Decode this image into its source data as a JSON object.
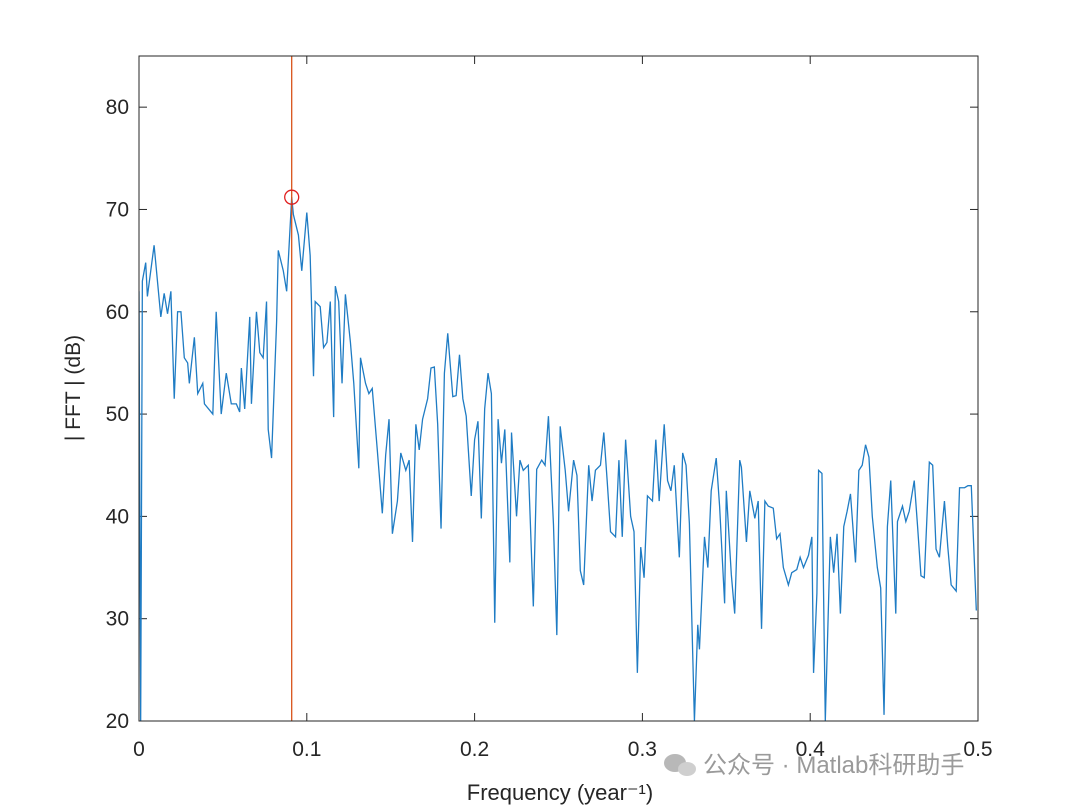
{
  "chart_data": {
    "type": "line",
    "xlabel": "Frequency (year⁻¹)",
    "ylabel": "| FFT | (dB)",
    "watermark": "公众号 · Matlab科研助手",
    "xlim": [
      0,
      0.5
    ],
    "ylim": [
      20,
      85
    ],
    "xticks": [
      0,
      0.1,
      0.2,
      0.3,
      0.4,
      0.5
    ],
    "yticks": [
      20,
      30,
      40,
      50,
      60,
      70,
      80
    ],
    "vline": {
      "x": 0.091,
      "color": "#d95319"
    },
    "marker": {
      "x": 0.091,
      "y": 71.2,
      "color": "#e02020"
    },
    "series": [
      {
        "color": "#1f7cc4",
        "x": [
          0,
          0.001,
          0.002,
          0.004,
          0.005,
          0.009,
          0.013,
          0.015,
          0.017,
          0.019,
          0.021,
          0.023,
          0.025,
          0.027,
          0.029,
          0.03,
          0.033,
          0.035,
          0.038,
          0.039,
          0.044,
          0.046,
          0.049,
          0.052,
          0.055,
          0.058,
          0.06,
          0.061,
          0.063,
          0.066,
          0.067,
          0.07,
          0.072,
          0.074,
          0.076,
          0.077,
          0.079,
          0.082,
          0.083,
          0.086,
          0.088,
          0.091,
          0.092,
          0.095,
          0.097,
          0.1,
          0.102,
          0.104,
          0.105,
          0.108,
          0.11,
          0.112,
          0.114,
          0.116,
          0.117,
          0.119,
          0.121,
          0.123,
          0.126,
          0.128,
          0.131,
          0.132,
          0.135,
          0.137,
          0.139,
          0.142,
          0.145,
          0.147,
          0.149,
          0.151,
          0.154,
          0.156,
          0.159,
          0.161,
          0.163,
          0.165,
          0.167,
          0.169,
          0.172,
          0.174,
          0.176,
          0.178,
          0.18,
          0.182,
          0.184,
          0.187,
          0.189,
          0.191,
          0.193,
          0.195,
          0.198,
          0.2,
          0.202,
          0.204,
          0.206,
          0.208,
          0.21,
          0.212,
          0.214,
          0.216,
          0.218,
          0.221,
          0.222,
          0.225,
          0.227,
          0.229,
          0.232,
          0.235,
          0.237,
          0.24,
          0.242,
          0.244,
          0.247,
          0.249,
          0.251,
          0.254,
          0.256,
          0.259,
          0.261,
          0.263,
          0.265,
          0.268,
          0.27,
          0.272,
          0.275,
          0.277,
          0.279,
          0.281,
          0.284,
          0.286,
          0.288,
          0.29,
          0.293,
          0.295,
          0.297,
          0.299,
          0.301,
          0.303,
          0.306,
          0.308,
          0.31,
          0.313,
          0.315,
          0.317,
          0.319,
          0.322,
          0.324,
          0.326,
          0.328,
          0.331,
          0.333,
          0.334,
          0.337,
          0.339,
          0.341,
          0.344,
          0.346,
          0.349,
          0.35,
          0.353,
          0.355,
          0.358,
          0.359,
          0.362,
          0.364,
          0.367,
          0.369,
          0.371,
          0.373,
          0.375,
          0.378,
          0.38,
          0.382,
          0.384,
          0.387,
          0.389,
          0.392,
          0.394,
          0.396,
          0.399,
          0.401,
          0.402,
          0.404,
          0.405,
          0.407,
          0.409,
          0.412,
          0.414,
          0.416,
          0.418,
          0.42,
          0.422,
          0.424,
          0.427,
          0.429,
          0.431,
          0.433,
          0.435,
          0.437,
          0.44,
          0.442,
          0.444,
          0.446,
          0.448,
          0.451,
          0.452,
          0.455,
          0.457,
          0.459,
          0.462,
          0.464,
          0.466,
          0.468,
          0.471,
          0.473,
          0.475,
          0.477,
          0.48,
          0.482,
          0.484,
          0.487,
          0.489,
          0.492,
          0.494,
          0.496,
          0.499
        ],
        "values": [
          62,
          20,
          63,
          64.8,
          61.5,
          66.5,
          59.5,
          61.8,
          59.8,
          62,
          51.5,
          60,
          60,
          55.5,
          55,
          53,
          57.5,
          52,
          53,
          51,
          50,
          60,
          50,
          54,
          51,
          51,
          50.2,
          54.5,
          50.5,
          59.5,
          51,
          60,
          56,
          55.5,
          61,
          48.5,
          45.7,
          59,
          66,
          64,
          62,
          71.2,
          69.5,
          67.5,
          64,
          69.7,
          65.5,
          53.7,
          61,
          60.5,
          56.5,
          57,
          61,
          49.7,
          62.5,
          61,
          53,
          61.7,
          57,
          53,
          44.7,
          55.5,
          53,
          52,
          52.5,
          46.5,
          40.3,
          46,
          49.5,
          38.3,
          41.5,
          46.2,
          44.5,
          45.5,
          37.5,
          49,
          46.5,
          49.5,
          51.5,
          54.5,
          54.6,
          49,
          38.8,
          54,
          57.9,
          51.7,
          51.8,
          55.8,
          51.5,
          49.8,
          42,
          47.5,
          49.3,
          39.8,
          50.5,
          54,
          52,
          29.6,
          49.5,
          45.2,
          48.5,
          35.5,
          48.2,
          40,
          45.5,
          44.5,
          45,
          31.2,
          44.6,
          45.5,
          45,
          49.8,
          39.2,
          28.4,
          48.8,
          44.5,
          40.5,
          45.5,
          44,
          34.7,
          33.3,
          45,
          41.5,
          44.5,
          45,
          48.2,
          43.5,
          38.5,
          38,
          45.5,
          38,
          47.5,
          40,
          38.5,
          24.7,
          37,
          34,
          42,
          41.5,
          47.5,
          41.5,
          49,
          43.5,
          42.5,
          45,
          36,
          46.2,
          45,
          39.3,
          20,
          29.4,
          27,
          38,
          35,
          42.5,
          45.7,
          41,
          31.5,
          42.5,
          34.3,
          30.5,
          45.5,
          44.8,
          37.5,
          42.5,
          39.8,
          41.5,
          29,
          41.5,
          41,
          40.8,
          37.8,
          38.3,
          35,
          33.3,
          34.5,
          34.8,
          36,
          35,
          36.2,
          38,
          24.7,
          32.5,
          44.5,
          44.2,
          20,
          38,
          34.5,
          38.3,
          30.5,
          39,
          40.5,
          42.2,
          35.5,
          44.5,
          45,
          47,
          45.8,
          40,
          35,
          33,
          20.6,
          39,
          43.5,
          30.5,
          39.5,
          41,
          39.5,
          40.5,
          43.5,
          39,
          34.2,
          34,
          45.3,
          45,
          36.8,
          36,
          41.5,
          37,
          33.3,
          32.7,
          42.8,
          42.8,
          43,
          43,
          30.8
        ]
      }
    ]
  }
}
